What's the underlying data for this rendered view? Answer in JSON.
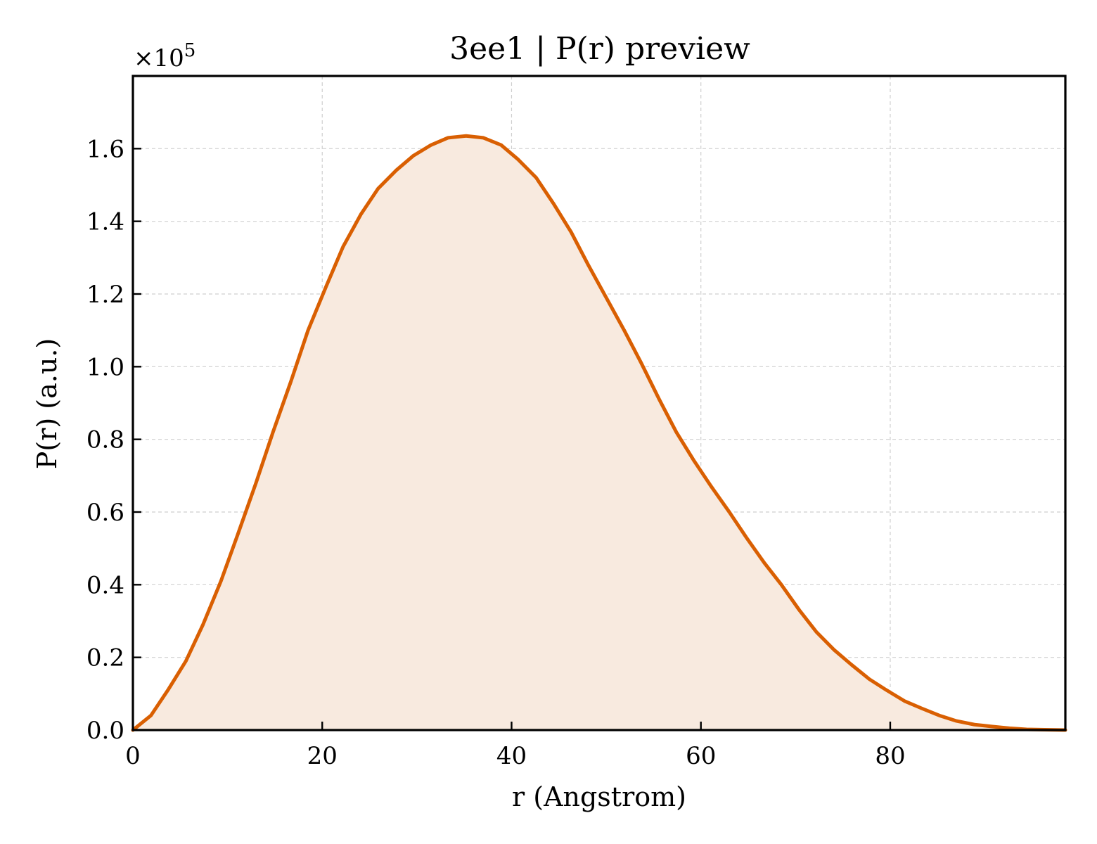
{
  "chart_data": {
    "type": "area",
    "title": "3ee1 | P(r) preview",
    "xlabel": "r (Angstrom)",
    "ylabel": "P(r) (a.u.)",
    "y_scale_label": "×10",
    "y_scale_exponent": "5",
    "xlim": [
      0,
      98.5
    ],
    "ylim": [
      0,
      1.8
    ],
    "x_ticks": [
      0,
      20,
      40,
      60,
      80
    ],
    "x_tick_labels": [
      "0",
      "20",
      "40",
      "60",
      "80"
    ],
    "y_ticks": [
      0.0,
      0.2,
      0.4,
      0.6,
      0.8,
      1.0,
      1.2,
      1.4,
      1.6
    ],
    "y_tick_labels": [
      "0.0",
      "0.2",
      "0.4",
      "0.6",
      "0.8",
      "1.0",
      "1.2",
      "1.4",
      "1.6"
    ],
    "grid": true,
    "line_color": "#d95f02",
    "fill_color": "#f8eadf",
    "series": [
      {
        "x": [
          0,
          1.9,
          3.7,
          5.6,
          7.4,
          9.3,
          11.1,
          13.0,
          14.8,
          16.7,
          18.5,
          20.4,
          22.2,
          24.1,
          25.9,
          27.8,
          29.6,
          31.5,
          33.3,
          35.2,
          37.0,
          38.9,
          40.7,
          42.6,
          44.4,
          46.3,
          48.1,
          50.0,
          51.9,
          53.7,
          55.6,
          57.4,
          59.3,
          61.1,
          63.0,
          64.8,
          66.7,
          68.5,
          70.4,
          72.2,
          74.1,
          75.9,
          77.8,
          79.6,
          81.5,
          83.3,
          85.2,
          87.0,
          88.9,
          90.7,
          92.6,
          94.4,
          96.3,
          98.5
        ],
        "values": [
          0.0,
          0.04,
          0.11,
          0.19,
          0.29,
          0.41,
          0.54,
          0.68,
          0.82,
          0.96,
          1.1,
          1.22,
          1.33,
          1.42,
          1.49,
          1.54,
          1.58,
          1.61,
          1.63,
          1.635,
          1.63,
          1.61,
          1.57,
          1.52,
          1.45,
          1.37,
          1.28,
          1.19,
          1.1,
          1.01,
          0.91,
          0.82,
          0.74,
          0.67,
          0.6,
          0.53,
          0.46,
          0.4,
          0.33,
          0.27,
          0.22,
          0.18,
          0.14,
          0.11,
          0.08,
          0.06,
          0.04,
          0.025,
          0.015,
          0.01,
          0.005,
          0.002,
          0.001,
          0.0
        ]
      }
    ]
  }
}
